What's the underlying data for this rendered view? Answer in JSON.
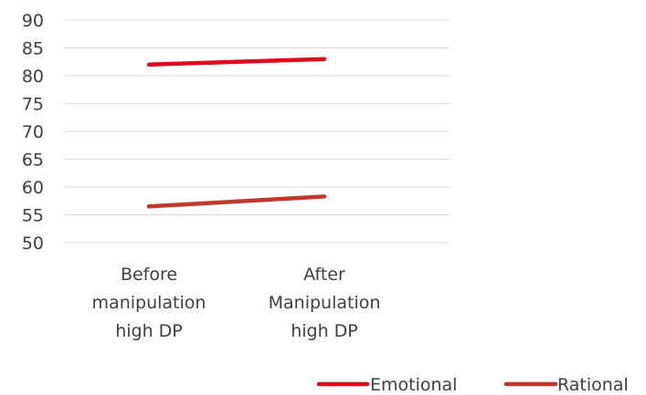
{
  "chart_data": {
    "type": "line",
    "title": "",
    "xlabel": "",
    "ylabel": "",
    "categories": [
      [
        "Before",
        "manipulation",
        "high DP"
      ],
      [
        "After",
        "Manipulation",
        "high DP"
      ]
    ],
    "series": [
      {
        "name": "Emotional",
        "values": [
          82,
          83
        ],
        "color": "#e00b1c"
      },
      {
        "name": "Rational",
        "values": [
          56.5,
          58.3
        ],
        "color": "#c0392b"
      }
    ],
    "ylim": [
      50,
      90
    ],
    "yticks": [
      50,
      55,
      60,
      65,
      70,
      75,
      80,
      85,
      90
    ],
    "grid": true,
    "legend": "bottom"
  }
}
